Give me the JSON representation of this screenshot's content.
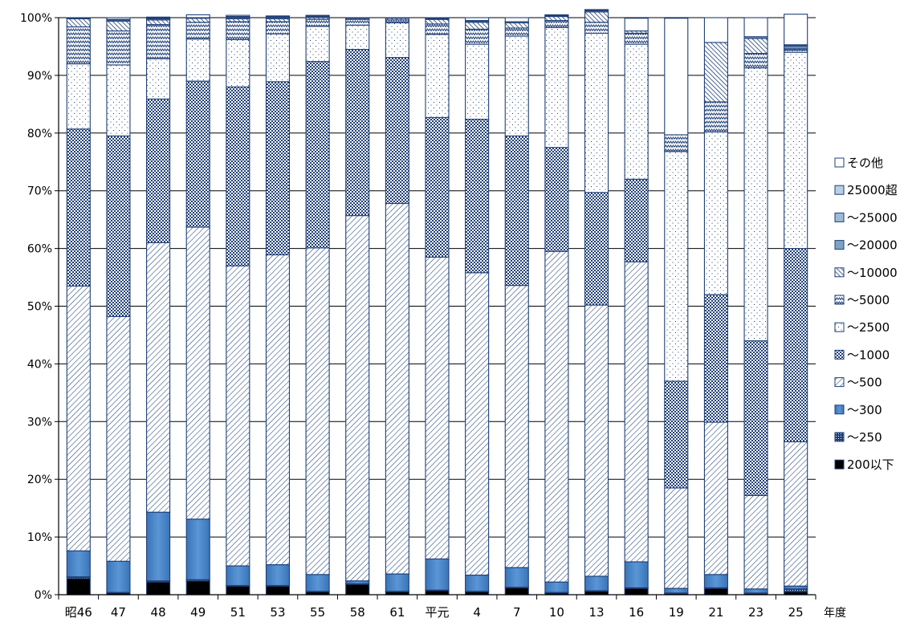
{
  "chart_data": {
    "type": "bar",
    "stacked": true,
    "percent": true,
    "categories": [
      "昭46",
      "47",
      "48",
      "49",
      "51",
      "53",
      "55",
      "58",
      "61",
      "平元",
      "4",
      "7",
      "10",
      "13",
      "16",
      "19",
      "21",
      "23",
      "25"
    ],
    "xlabel": "年度",
    "ylabel": "",
    "ylim": [
      0,
      100
    ],
    "yticks": [
      "0%",
      "10%",
      "20%",
      "30%",
      "40%",
      "50%",
      "60%",
      "70%",
      "80%",
      "90%",
      "100%"
    ],
    "grid": true,
    "legend_position": "right",
    "series": [
      {
        "name": "200以下",
        "pattern": "solid-black",
        "values": [
          2.8,
          0.3,
          2.2,
          2.4,
          1.5,
          1.5,
          0.5,
          1.8,
          0.5,
          0.7,
          0.5,
          1.2,
          0.3,
          0.6,
          1.1,
          0.2,
          1.1,
          0.2,
          0.5
        ]
      },
      {
        "name": "～250",
        "pattern": "dots-navy",
        "values": [
          0.3,
          0.1,
          0.2,
          0.2,
          0.1,
          0.1,
          0.1,
          0.1,
          0.1,
          0.1,
          0.1,
          0.1,
          0.1,
          0.1,
          0.1,
          0.1,
          0.1,
          0.1,
          0.5
        ]
      },
      {
        "name": "～300",
        "pattern": "solid-blue",
        "values": [
          4.5,
          5.4,
          11.9,
          10.5,
          3.4,
          3.6,
          2.9,
          0.5,
          3.0,
          5.4,
          2.8,
          3.4,
          1.8,
          2.5,
          4.5,
          0.8,
          2.3,
          0.7,
          0.5
        ]
      },
      {
        "name": "～500",
        "pattern": "diagonal",
        "values": [
          45.9,
          42.4,
          46.7,
          50.6,
          52.0,
          53.7,
          56.6,
          63.3,
          64.2,
          52.3,
          52.4,
          48.9,
          57.3,
          47.0,
          52.0,
          17.4,
          26.4,
          16.2,
          25.0
        ]
      },
      {
        "name": "～1000",
        "pattern": "checker",
        "values": [
          27.2,
          31.3,
          24.9,
          25.3,
          31.0,
          30.0,
          32.3,
          28.8,
          25.3,
          24.2,
          26.6,
          25.9,
          18.0,
          19.5,
          14.3,
          18.5,
          22.1,
          26.8,
          33.5
        ]
      },
      {
        "name": "～2500",
        "pattern": "sparse-dots",
        "values": [
          11.3,
          12.3,
          7.0,
          7.3,
          8.2,
          8.3,
          6.1,
          4.2,
          6.0,
          14.4,
          13.0,
          17.3,
          20.8,
          27.6,
          23.4,
          39.8,
          28.2,
          47.3,
          34.0
        ]
      },
      {
        "name": "～5000",
        "pattern": "zigzag",
        "values": [
          6.4,
          5.9,
          5.9,
          2.9,
          3.1,
          2.1,
          1.2,
          1.0,
          0.5,
          1.8,
          2.6,
          1.4,
          1.2,
          1.9,
          1.9,
          2.9,
          5.2,
          2.5,
          0.4
        ]
      },
      {
        "name": "～10000",
        "pattern": "hatch",
        "values": [
          1.4,
          1.7,
          0.8,
          0.7,
          0.5,
          0.5,
          0.3,
          0.2,
          0.3,
          0.8,
          1.2,
          0.9,
          0.7,
          1.8,
          0.4,
          0.0,
          10.3,
          2.6,
          0.2
        ]
      },
      {
        "name": "～20000",
        "pattern": "solid-mid",
        "values": [
          0.1,
          0.2,
          0.2,
          0.1,
          0.2,
          0.2,
          0.2,
          0.1,
          0.1,
          0.1,
          0.2,
          0.2,
          0.1,
          0.2,
          0.0,
          0.0,
          0.0,
          0.3,
          0.4
        ]
      },
      {
        "name": "～25000",
        "pattern": "solid-light",
        "values": [
          0.0,
          0.1,
          0.1,
          0.0,
          0.1,
          0.1,
          0.1,
          0.0,
          0.0,
          0.1,
          0.1,
          0.0,
          0.1,
          0.1,
          0.0,
          0.0,
          0.0,
          0.0,
          0.2
        ]
      },
      {
        "name": "25000超",
        "pattern": "solid-pale",
        "values": [
          0.0,
          0.0,
          0.1,
          0.0,
          0.1,
          0.1,
          0.1,
          0.0,
          0.0,
          0.0,
          0.0,
          0.0,
          0.1,
          0.1,
          0.0,
          0.0,
          0.0,
          0.0,
          0.1
        ]
      },
      {
        "name": "その他",
        "pattern": "white",
        "values": [
          0.1,
          0.3,
          0.1,
          0.5,
          0.2,
          0.1,
          0.0,
          0.0,
          0.0,
          0.1,
          0.5,
          0.7,
          0.0,
          0.0,
          2.2,
          20.2,
          4.3,
          3.3,
          5.3
        ]
      }
    ]
  },
  "colors": {
    "navy": "#1f3f77",
    "blue": "#4a86c8",
    "mid_blue": "#7fa2c4",
    "light_blue": "#9fbbd6",
    "pale_blue": "#b9cfe3",
    "axis": "#000000",
    "grid": "#000000"
  }
}
